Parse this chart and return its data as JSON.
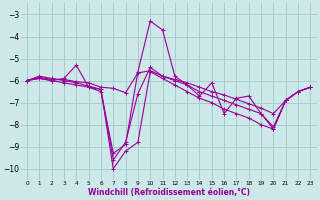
{
  "xlabel": "Windchill (Refroidissement éolien,°C)",
  "bg_color": "#cce8e8",
  "grid_color": "#aacccc",
  "line_color": "#990099",
  "xlim": [
    -0.5,
    23.5
  ],
  "ylim": [
    -10.5,
    -2.5
  ],
  "yticks": [
    -10,
    -9,
    -8,
    -7,
    -6,
    -5,
    -4,
    -3
  ],
  "xticks": [
    0,
    1,
    2,
    3,
    4,
    5,
    6,
    7,
    8,
    9,
    10,
    11,
    12,
    13,
    14,
    15,
    16,
    17,
    18,
    19,
    20,
    21,
    22,
    23
  ],
  "series": [
    [
      -6.0,
      -5.9,
      -6.0,
      -5.9,
      -5.3,
      -6.3,
      -6.5,
      -9.3,
      -8.9,
      -5.6,
      -3.3,
      -3.7,
      -5.8,
      -6.2,
      -6.7,
      -6.1,
      -7.5,
      -6.8,
      -6.7,
      -7.5,
      -8.2,
      -6.9,
      -6.5,
      -6.3
    ],
    [
      -6.0,
      -5.9,
      -6.0,
      -6.1,
      -6.2,
      -6.3,
      -6.4,
      -10.0,
      -9.2,
      -8.8,
      -5.6,
      -5.9,
      -6.2,
      -6.5,
      -6.8,
      -7.0,
      -7.3,
      -7.5,
      -7.7,
      -8.0,
      -8.2,
      -6.9,
      -6.5,
      -6.3
    ],
    [
      -6.0,
      -5.8,
      -5.9,
      -6.0,
      -6.1,
      -6.25,
      -6.4,
      -9.6,
      -8.8,
      -6.6,
      -5.4,
      -5.8,
      -6.0,
      -6.2,
      -6.5,
      -6.7,
      -6.9,
      -7.1,
      -7.3,
      -7.5,
      -8.1,
      -6.9,
      -6.5,
      -6.3
    ],
    [
      -6.0,
      -5.85,
      -5.95,
      -5.95,
      -6.05,
      -6.1,
      -6.3,
      -6.35,
      -6.55,
      -5.65,
      -5.55,
      -5.8,
      -5.95,
      -6.1,
      -6.3,
      -6.5,
      -6.65,
      -6.85,
      -7.05,
      -7.25,
      -7.5,
      -6.9,
      -6.5,
      -6.3
    ]
  ]
}
